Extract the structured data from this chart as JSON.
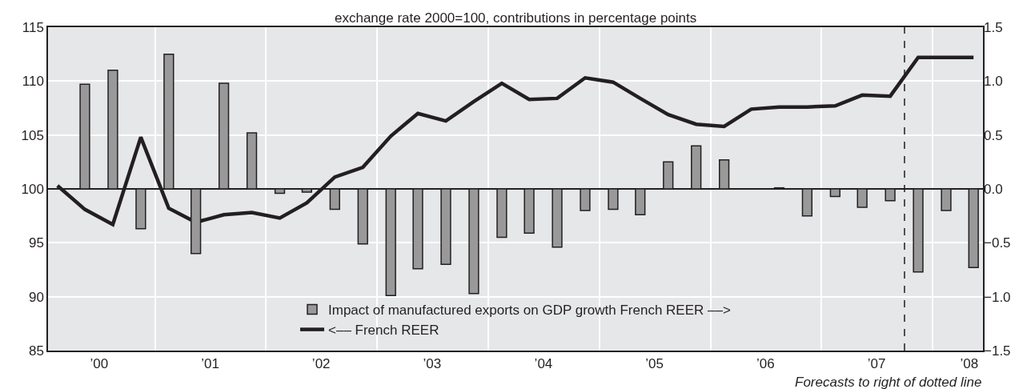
{
  "chart_data": {
    "type": "bar",
    "title": "exchange rate 2000=100, contributions in percentage points",
    "x": [
      "2000-02-15",
      "2000-05-15",
      "2000-08-15",
      "2000-11-15",
      "2001-02-15",
      "2001-05-15",
      "2001-08-15",
      "2001-11-15",
      "2002-02-15",
      "2002-05-15",
      "2002-08-15",
      "2002-11-15",
      "2003-02-15",
      "2003-05-15",
      "2003-08-15",
      "2003-11-15",
      "2004-02-15",
      "2004-05-15",
      "2004-08-15",
      "2004-11-15",
      "2005-02-15",
      "2005-05-15",
      "2005-08-15",
      "2005-11-15",
      "2006-02-15",
      "2006-05-15",
      "2006-08-15",
      "2006-11-15",
      "2007-02-15",
      "2007-05-15",
      "2007-08-15",
      "2007-11-15",
      "2008-02-15",
      "2008-05-15"
    ],
    "series": [
      {
        "name": "Impact of manufactured exports on GDP growth French REER ––>",
        "axis": "y2",
        "color": "#999999",
        "values": [
          null,
          0.97,
          1.1,
          -0.37,
          1.25,
          -0.6,
          0.98,
          0.52,
          -0.04,
          -0.03,
          -0.19,
          -0.51,
          -0.99,
          -0.74,
          -0.7,
          -0.97,
          -0.45,
          -0.41,
          -0.54,
          -0.2,
          -0.19,
          -0.24,
          0.25,
          0.4,
          0.27,
          null,
          0.01,
          -0.25,
          -0.07,
          -0.17,
          -0.11,
          -0.77,
          -0.2,
          -0.73
        ]
      },
      {
        "name": "<–– French REER",
        "type": "line",
        "color": "#231f20",
        "values": [
          100.3,
          98.1,
          96.7,
          104.8,
          98.2,
          96.9,
          97.6,
          97.8,
          97.3,
          98.7,
          101.1,
          102.0,
          104.9,
          107.0,
          106.3,
          108.1,
          109.8,
          108.3,
          108.4,
          110.3,
          109.9,
          108.4,
          106.9,
          106.0,
          105.8,
          107.4,
          107.6,
          107.6,
          107.7,
          108.7,
          108.6,
          112.2,
          112.2,
          112.2
        ]
      }
    ],
    "xlim": [
      "2000-01-15",
      "2008-06-15"
    ],
    "xticks": [
      {
        "value": "2000-07-01",
        "label": "’00"
      },
      {
        "value": "2001-01-01",
        "label": null
      },
      {
        "value": "2001-07-01",
        "label": "’01"
      },
      {
        "value": "2002-01-01",
        "label": null
      },
      {
        "value": "2002-07-01",
        "label": "’02"
      },
      {
        "value": "2003-01-01",
        "label": null
      },
      {
        "value": "2003-07-01",
        "label": "’03"
      },
      {
        "value": "2004-01-01",
        "label": null
      },
      {
        "value": "2004-07-01",
        "label": "’04"
      },
      {
        "value": "2005-01-01",
        "label": null
      },
      {
        "value": "2005-07-01",
        "label": "’05"
      },
      {
        "value": "2006-01-01",
        "label": null
      },
      {
        "value": "2006-07-01",
        "label": "’06"
      },
      {
        "value": "2007-01-01",
        "label": null
      },
      {
        "value": "2007-07-01",
        "label": "’07"
      },
      {
        "value": "2008-01-01",
        "label": null
      },
      {
        "value": "2008-05-01",
        "label": "’08"
      }
    ],
    "ylim": [
      85,
      115
    ],
    "yticks": [
      85,
      90,
      95,
      100,
      105,
      110,
      115
    ],
    "y2lim": [
      -1.5,
      1.5
    ],
    "y2ticks": [
      {
        "value": -1.5,
        "label": "−1.5"
      },
      {
        "value": -1.0,
        "label": "−1.0"
      },
      {
        "value": -0.5,
        "label": "−0.5"
      },
      {
        "value": 0,
        "label": "0.0"
      },
      {
        "value": 0.5,
        "label": "0.5"
      },
      {
        "value": 1.0,
        "label": "1.0"
      },
      {
        "value": 1.5,
        "label": "1.5"
      }
    ],
    "ref_lines": [
      {
        "axis": "x",
        "value": "2007-10-01",
        "color": "#231f20",
        "line_style": "dashed"
      }
    ],
    "annotations": [
      "Forecasts to right of dotted line"
    ],
    "grid": true,
    "legend": "bottom",
    "marker": "none"
  }
}
